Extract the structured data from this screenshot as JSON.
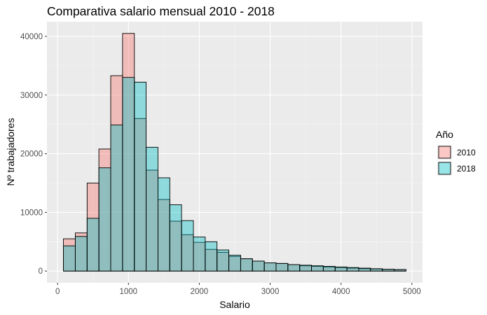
{
  "chart_data": {
    "type": "histogram",
    "title": "Comparativa salario mensual 2010 - 2018",
    "xlabel": "Salario",
    "ylabel": "Nº trabajadores",
    "xlim": [
      -150,
      5150
    ],
    "ylim": [
      -2000,
      42500
    ],
    "xticks": [
      0,
      1000,
      2000,
      3000,
      4000,
      5000
    ],
    "xtick_labels": [
      "0",
      "1000",
      "2000",
      "3000",
      "4000",
      "5000"
    ],
    "yticks": [
      0,
      10000,
      20000,
      30000,
      40000
    ],
    "ytick_labels": [
      "0",
      "10000",
      "20000",
      "30000",
      "40000"
    ],
    "grid": true,
    "legend_title": "Año",
    "legend_position": "right",
    "bin_width": 166.7,
    "bin_starts": [
      83,
      250,
      417,
      583,
      750,
      917,
      1083,
      1250,
      1417,
      1583,
      1750,
      1917,
      2083,
      2250,
      2417,
      2583,
      2750,
      2917,
      3083,
      3250,
      3417,
      3583,
      3750,
      3917,
      4083,
      4250,
      4417,
      4583,
      4750
    ],
    "series": [
      {
        "name": "2010",
        "color": "#F8766D",
        "values": [
          5500,
          6500,
          15000,
          20800,
          33300,
          40500,
          26000,
          17200,
          12200,
          8500,
          6200,
          4900,
          3700,
          3200,
          2500,
          2100,
          1700,
          1400,
          1300,
          1100,
          900,
          800,
          700,
          600,
          500,
          400,
          350,
          300,
          250
        ]
      },
      {
        "name": "2018",
        "color": "#00BFC4",
        "values": [
          4300,
          5900,
          9000,
          17600,
          24900,
          33000,
          32200,
          21100,
          15900,
          11300,
          8600,
          5800,
          5000,
          3600,
          2700,
          2100,
          1700,
          1400,
          1300,
          1100,
          1000,
          900,
          800,
          700,
          600,
          500,
          400,
          300,
          250
        ]
      }
    ]
  }
}
